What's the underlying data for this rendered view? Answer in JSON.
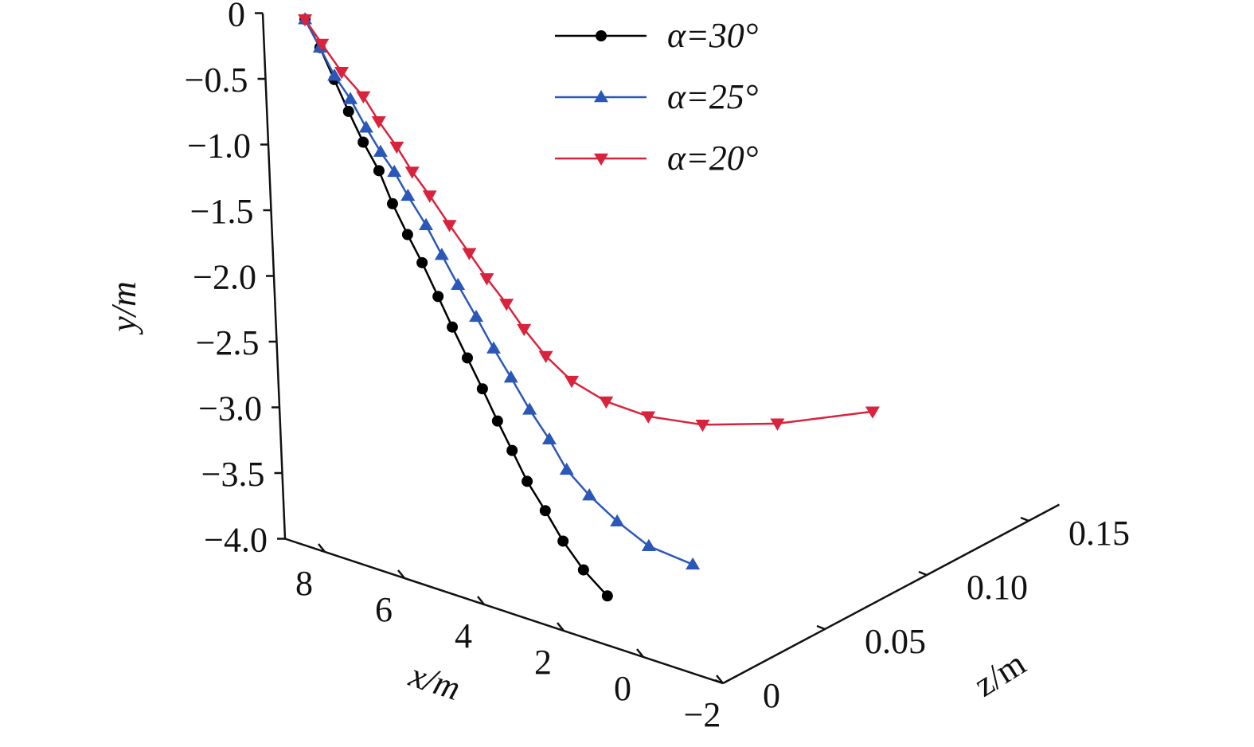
{
  "chart_data": {
    "type": "line3d",
    "xlabel": "x/m",
    "ylabel": "y/m",
    "zlabel": "z/m",
    "xlim": [
      -2,
      9
    ],
    "ylim": [
      -4,
      0
    ],
    "zlim": [
      0,
      0.165
    ],
    "xticks": [
      8,
      6,
      4,
      2,
      0,
      {
        "value": -2,
        "label": "−2"
      }
    ],
    "yticks": [
      0,
      {
        "value": -0.5,
        "label": "−0.5"
      },
      {
        "value": -1,
        "label": "−1.0"
      },
      {
        "value": -1.5,
        "label": "−1.5"
      },
      {
        "value": -2,
        "label": "−2.0"
      },
      {
        "value": -2.5,
        "label": "−2.5"
      },
      {
        "value": -3,
        "label": "−3.0"
      },
      {
        "value": -3.5,
        "label": "−3.5"
      },
      {
        "value": -4,
        "label": "−4.0"
      }
    ],
    "zticks": [
      0,
      0.05,
      {
        "value": 0.1,
        "label": "0.10"
      },
      0.15
    ],
    "series": [
      {
        "name": "α=30°",
        "color": "#000000",
        "marker": "circle",
        "x": [
          7.93,
          7.58,
          7.25,
          6.92,
          6.58,
          6.21,
          5.9,
          5.55,
          5.21,
          4.84,
          4.51,
          4.16,
          3.81,
          3.46,
          3.12,
          2.77,
          2.34,
          1.92,
          1.43,
          0.85
        ],
        "y": [
          0.06,
          -0.12,
          -0.33,
          -0.54,
          -0.74,
          -0.92,
          -1.14,
          -1.34,
          -1.52,
          -1.74,
          -1.94,
          -2.14,
          -2.34,
          -2.55,
          -2.74,
          -2.94,
          -3.12,
          -3.31,
          -3.48,
          -3.62
        ],
        "z": [
          0,
          0,
          0,
          0,
          0,
          0,
          0,
          0,
          0,
          0,
          0,
          0,
          0,
          0,
          0,
          0,
          0,
          0,
          0,
          0
        ]
      },
      {
        "name": "α=25°",
        "color": "#2b58b8",
        "marker": "triangle-up",
        "x": [
          7.93,
          7.58,
          7.24,
          6.86,
          6.49,
          6.15,
          5.82,
          5.5,
          5.07,
          4.7,
          4.32,
          3.89,
          3.48,
          3.07,
          2.63,
          2.16,
          1.75,
          1.2,
          0.52,
          -0.26,
          -1.36
        ],
        "y": [
          0.06,
          -0.12,
          -0.3,
          -0.44,
          -0.62,
          -0.77,
          -0.89,
          -1.04,
          -1.22,
          -1.41,
          -1.6,
          -1.8,
          -2,
          -2.18,
          -2.38,
          -2.56,
          -2.75,
          -2.89,
          -3.02,
          -3.13,
          -3.16
        ],
        "z": [
          0,
          0,
          0,
          0,
          0,
          0,
          0,
          0,
          0,
          0,
          0,
          0,
          0,
          0,
          0,
          0,
          0,
          0,
          0,
          0,
          0
        ]
      },
      {
        "name": "α=20°",
        "color": "#d9233c",
        "marker": "triangle-down",
        "x": [
          7.93,
          7.58,
          7.16,
          6.74,
          6.32,
          5.89,
          5.47,
          5.05,
          4.63,
          4.21,
          3.79,
          3.37,
          2.95,
          2.53,
          2.11,
          1.68,
          1.26,
          0.84,
          0.42,
          0
        ],
        "y": [
          0.06,
          -0.1,
          -0.28,
          -0.44,
          -0.58,
          -0.73,
          -0.87,
          -1.01,
          -1.2,
          -1.38,
          -1.53,
          -1.69,
          -1.84,
          -2.02,
          -2.2,
          -2.38,
          -2.55,
          -2.72,
          -2.9,
          -3.08
        ],
        "z": [
          0,
          0.001,
          0.002,
          0.004,
          0.003,
          0.003,
          0.002,
          0.002,
          0.003,
          0.004,
          0.004,
          0.005,
          0.005,
          0.007,
          0.011,
          0.019,
          0.031,
          0.049,
          0.077,
          0.115
        ]
      }
    ]
  }
}
